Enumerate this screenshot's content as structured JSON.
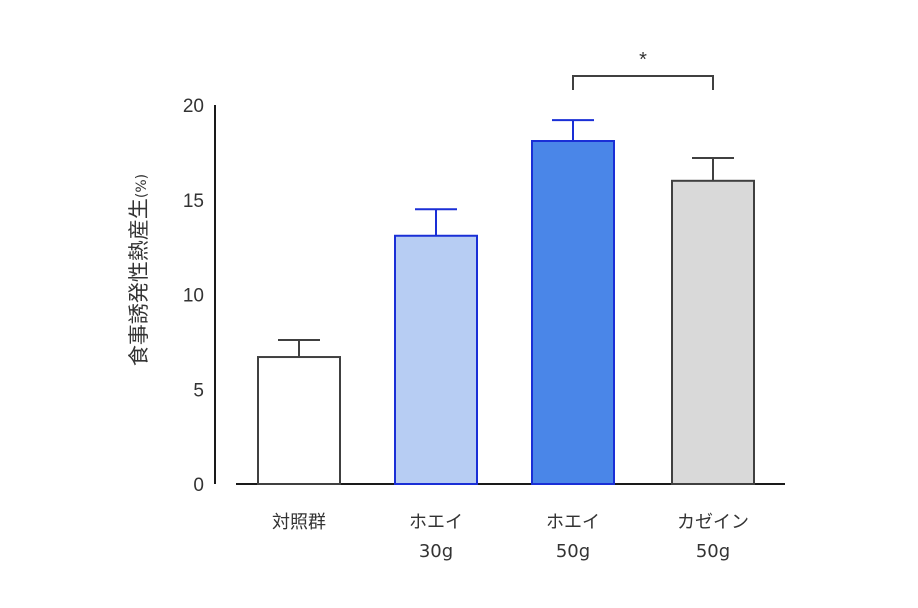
{
  "chart_data": {
    "type": "bar",
    "ylabel": "食事誘発性熱産生",
    "ylabel_unit": "(%)",
    "ylim": [
      0,
      20
    ],
    "yticks": [
      0,
      5,
      10,
      15,
      20
    ],
    "grid": false,
    "categories": [
      {
        "line1": "対照群",
        "line2": ""
      },
      {
        "line1": "ホエイ",
        "line2": "30g"
      },
      {
        "line1": "ホエイ",
        "line2": "50g"
      },
      {
        "line1": "カゼイン",
        "line2": "50g"
      }
    ],
    "values": [
      6.7,
      13.1,
      18.1,
      16.0
    ],
    "error_upper": [
      0.9,
      1.4,
      1.1,
      1.2
    ],
    "colors": {
      "fill": [
        "#ffffff",
        "#b7cdf3",
        "#4a86e8",
        "#d9d9d9"
      ],
      "stroke": [
        "#404040",
        "#1a2fd6",
        "#1a2fd6",
        "#404040"
      ],
      "axis": "#1a1a1a"
    },
    "significance": [
      {
        "from": 2,
        "to": 3,
        "label": "*"
      }
    ]
  }
}
